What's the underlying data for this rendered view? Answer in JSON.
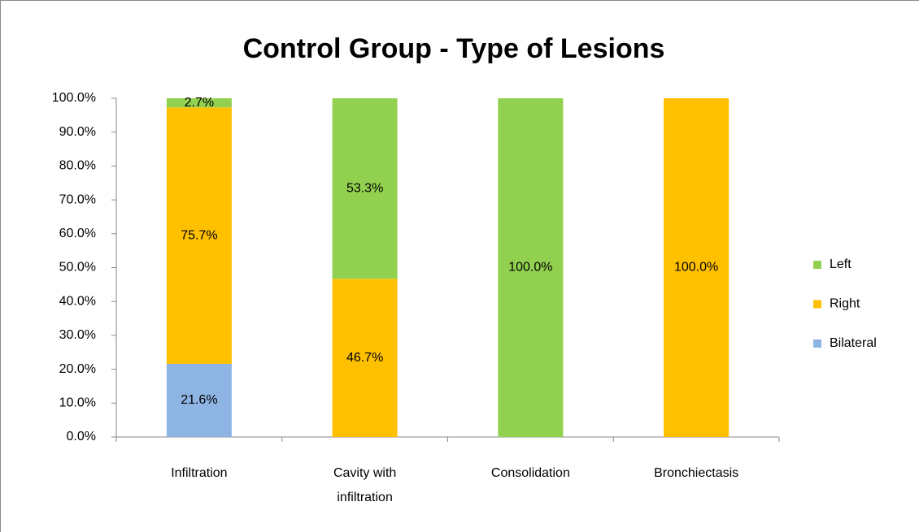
{
  "chart_data": {
    "type": "stacked_bar",
    "title": "Control Group - Type of Lesions",
    "categories": [
      "Infiltration",
      "Cavity with infiltration",
      "Consolidation",
      "Bronchiectasis"
    ],
    "series": [
      {
        "name": "Bilateral",
        "color": "#8eb4e3",
        "values": [
          21.6,
          0,
          0,
          0
        ],
        "value_labels": [
          "21.6%",
          null,
          null,
          null
        ]
      },
      {
        "name": "Right",
        "color": "#ffc000",
        "values": [
          75.7,
          46.7,
          0,
          100
        ],
        "value_labels": [
          "75.7%",
          "46.7%",
          null,
          "100.0%"
        ]
      },
      {
        "name": "Left",
        "color": "#92d050",
        "values": [
          2.7,
          53.3,
          100,
          0
        ],
        "value_labels": [
          "2.7%",
          "53.3%",
          "100.0%",
          null
        ]
      }
    ],
    "ylim": [
      0,
      100
    ],
    "yticks": [
      {
        "value": 0,
        "label": "0.0%"
      },
      {
        "value": 10,
        "label": "10.0%"
      },
      {
        "value": 20,
        "label": "20.0%"
      },
      {
        "value": 30,
        "label": "30.0%"
      },
      {
        "value": 40,
        "label": "40.0%"
      },
      {
        "value": 50,
        "label": "50.0%"
      },
      {
        "value": 60,
        "label": "60.0%"
      },
      {
        "value": 70,
        "label": "70.0%"
      },
      {
        "value": 80,
        "label": "80.0%"
      },
      {
        "value": 90,
        "label": "90.0%"
      },
      {
        "value": 100,
        "label": "100.0%"
      }
    ],
    "legend": "right"
  }
}
